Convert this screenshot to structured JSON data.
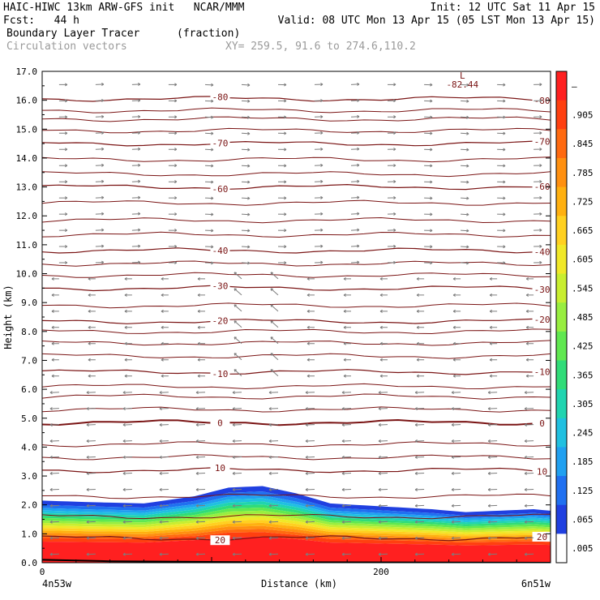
{
  "header": {
    "line1_left": "HAIC-HIWC 13km ARW-GFS init   NCAR/MMM",
    "line1_right": "Init: 12 UTC Sat 11 Apr 15",
    "line2_left": "Fcst:   44 h",
    "line2_right": "Valid: 08 UTC Mon 13 Apr 15 (05 LST Mon 13 Apr 15)",
    "field_name": "Boundary Layer Tracer",
    "field_units": "(fraction)",
    "vectors_label": "Circulation vectors",
    "xy_label": "XY= 259.5, 91.6 to 274.6,110.2"
  },
  "chart_data": {
    "type": "cross-section",
    "ylabel": "Height (km)",
    "xlabel": "Distance (km)",
    "ylim": [
      0,
      17
    ],
    "yticks": [
      "0.0",
      "1.0",
      "2.0",
      "3.0",
      "4.0",
      "5.0",
      "6.0",
      "7.0",
      "8.0",
      "9.0",
      "10.0",
      "11.0",
      "12.0",
      "13.0",
      "14.0",
      "15.0",
      "16.0",
      "17.0"
    ],
    "xlim": [
      0,
      300
    ],
    "xticks": [
      {
        "value": 0,
        "label": "0"
      },
      {
        "value": 200,
        "label": "200"
      }
    ],
    "x_endpoint_labels": {
      "left": "4n53w",
      "right": "6n51w"
    },
    "colorbar": {
      "labels": [
        "–",
        ".905",
        ".845",
        ".785",
        ".725",
        ".665",
        ".605",
        ".545",
        ".485",
        ".425",
        ".365",
        ".305",
        ".245",
        ".185",
        ".125",
        ".065",
        ".005"
      ],
      "colors": [
        "#ff2020",
        "#ff4010",
        "#ff6a10",
        "#ff9010",
        "#ffb010",
        "#ffd020",
        "#f0e828",
        "#c8ee30",
        "#98ee40",
        "#60e850",
        "#30dc78",
        "#20d4b0",
        "#20c0e0",
        "#20a0f0",
        "#2070f0",
        "#2040e0",
        "#ffffff"
      ]
    },
    "temperature_contours": [
      {
        "value": 20,
        "label": "20",
        "height_km": 0.85
      },
      {
        "value": 10,
        "label": "10",
        "height_km": 3.2
      },
      {
        "value": 0,
        "label": "0",
        "height_km": 4.85
      },
      {
        "value": -10,
        "label": "-10",
        "height_km": 6.6
      },
      {
        "value": -20,
        "label": "-20",
        "height_km": 8.35
      },
      {
        "value": -30,
        "label": "-30",
        "height_km": 9.5
      },
      {
        "value": -40,
        "label": "-40",
        "height_km": 10.8
      },
      {
        "value": -60,
        "label": "-60",
        "height_km": 13.0
      },
      {
        "value": -70,
        "label": "-70",
        "height_km": 14.5
      },
      {
        "value": -80,
        "label": "-80",
        "height_km": 16.05
      }
    ],
    "minimum_label": {
      "symbol": "L",
      "value": "-82.44"
    },
    "tracer_top_km": [
      2.15,
      2.1,
      2.05,
      2.3,
      2.6,
      2.65,
      2.4,
      2.05,
      1.95,
      1.85,
      1.75,
      1.8,
      1.85,
      1.8
    ],
    "tracer_top_x_km": [
      0,
      25,
      60,
      90,
      110,
      130,
      150,
      170,
      200,
      230,
      250,
      270,
      290,
      300
    ]
  }
}
